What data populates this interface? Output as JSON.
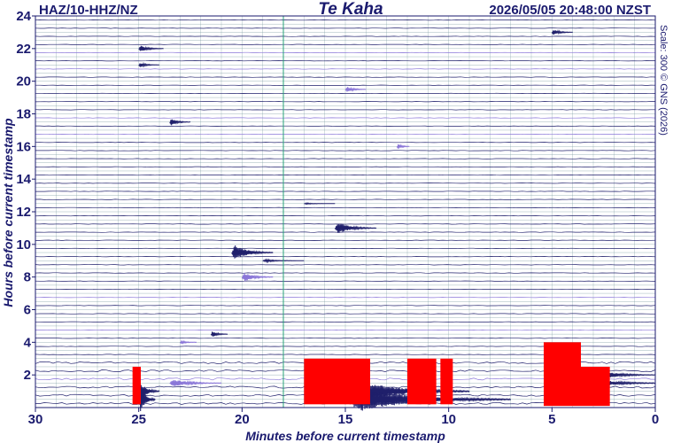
{
  "header": {
    "station": "HAZ/10-HHZ/NZ",
    "title": "Te Kaha",
    "timestamp": "2026/05/05 20:48:00 NZST",
    "scale_note": "Scale: 300 © GNS (2026)"
  },
  "colors": {
    "ink": "#1a1a6e",
    "trace_dark": "#1f1f6b",
    "trace_light": "#8a76d8",
    "grid": "#6c8f97",
    "clip": "#ff0000",
    "marker": "#2aa37a"
  },
  "chart_data": {
    "type": "heliplot",
    "xlabel": "Minutes before current timestamp",
    "ylabel": "Hours before current timestamp",
    "x_ticks": [
      "30",
      "25",
      "20",
      "15",
      "10",
      "5",
      "0"
    ],
    "y_ticks": [
      "2",
      "4",
      "6",
      "8",
      "10",
      "12",
      "14",
      "16",
      "18",
      "20",
      "22",
      "24"
    ],
    "xlim": [
      30,
      0
    ],
    "ylim": [
      0,
      24
    ],
    "line_count": 48,
    "minutes_per_line": 30,
    "current_time_marker_minutes": 18,
    "events": [
      {
        "hours": 22.0,
        "minutes": 25.0,
        "amp": 0.5,
        "dur": 1.2,
        "tone": "dark"
      },
      {
        "hours": 23.0,
        "minutes": 5.0,
        "amp": 0.45,
        "dur": 1.0,
        "tone": "dark"
      },
      {
        "hours": 21.0,
        "minutes": 25.0,
        "amp": 0.35,
        "dur": 1.0,
        "tone": "dark"
      },
      {
        "hours": 17.5,
        "minutes": 23.5,
        "amp": 0.55,
        "dur": 1.0,
        "tone": "dark"
      },
      {
        "hours": 19.5,
        "minutes": 15.0,
        "amp": 0.45,
        "dur": 1.0,
        "tone": "light"
      },
      {
        "hours": 16.0,
        "minutes": 12.5,
        "amp": 0.45,
        "dur": 0.6,
        "tone": "light"
      },
      {
        "hours": 12.5,
        "minutes": 17.0,
        "amp": 0.1,
        "dur": 1.5,
        "tone": "dark"
      },
      {
        "hours": 11.0,
        "minutes": 15.5,
        "amp": 0.9,
        "dur": 2.0,
        "tone": "dark"
      },
      {
        "hours": 9.5,
        "minutes": 20.5,
        "amp": 1.2,
        "dur": 2.0,
        "tone": "dark"
      },
      {
        "hours": 9.0,
        "minutes": 19.0,
        "amp": 0.2,
        "dur": 2.0,
        "tone": "dark"
      },
      {
        "hours": 8.0,
        "minutes": 20.0,
        "amp": 0.7,
        "dur": 1.5,
        "tone": "light"
      },
      {
        "hours": 4.5,
        "minutes": 21.5,
        "amp": 0.5,
        "dur": 0.8,
        "tone": "dark"
      },
      {
        "hours": 4.0,
        "minutes": 23.0,
        "amp": 0.25,
        "dur": 0.8,
        "tone": "light"
      },
      {
        "hours": 1.5,
        "minutes": 23.5,
        "amp": 0.6,
        "dur": 2.5,
        "tone": "light"
      },
      {
        "hours": 1.0,
        "minutes": 25.0,
        "amp": 1.6,
        "dur": 1.0,
        "tone": "dark"
      },
      {
        "hours": 0.5,
        "minutes": 25.0,
        "amp": 2.4,
        "dur": 0.8,
        "tone": "dark"
      },
      {
        "hours": 1.0,
        "minutes": 15.0,
        "amp": 2.0,
        "dur": 6.0,
        "tone": "dark"
      },
      {
        "hours": 0.5,
        "minutes": 15.0,
        "amp": 2.0,
        "dur": 8.0,
        "tone": "dark"
      },
      {
        "hours": 2.0,
        "minutes": 3.0,
        "amp": 0.8,
        "dur": 3.0,
        "tone": "dark"
      },
      {
        "hours": 1.5,
        "minutes": 4.0,
        "amp": 1.2,
        "dur": 4.0,
        "tone": "dark"
      }
    ],
    "clipped_regions": [
      {
        "min_from": 17.0,
        "min_to": 13.8,
        "hours_top": 3.0,
        "hours_bottom": 0.2
      },
      {
        "min_from": 12.0,
        "min_to": 10.6,
        "hours_top": 3.0,
        "hours_bottom": 0.2
      },
      {
        "min_from": 10.4,
        "min_to": 9.8,
        "hours_top": 3.0,
        "hours_bottom": 0.2
      },
      {
        "min_from": 25.3,
        "min_to": 24.9,
        "hours_top": 2.5,
        "hours_bottom": 0.2
      },
      {
        "min_from": 5.4,
        "min_to": 3.6,
        "hours_top": 4.0,
        "hours_bottom": 0.1
      },
      {
        "min_from": 3.6,
        "min_to": 2.2,
        "hours_top": 2.5,
        "hours_bottom": 0.1
      }
    ]
  }
}
